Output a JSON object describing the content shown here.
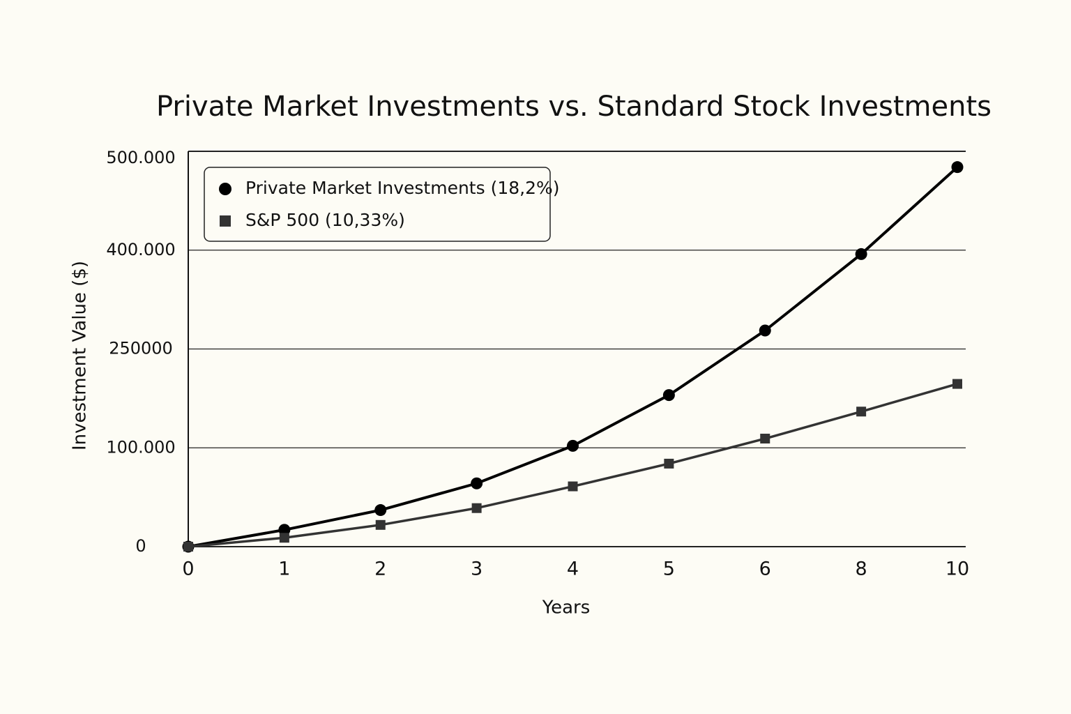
{
  "chart_data": {
    "type": "line",
    "title": "Private Market Investments vs. Standard Stock Investments",
    "x_label": "Years",
    "y_label": "Investment Value ($)",
    "categories": [
      "0",
      "1",
      "2",
      "3",
      "4",
      "5",
      "6",
      "8",
      "10"
    ],
    "series": [
      {
        "name": "Private Market Investments (18,2%)",
        "color": "#000000",
        "marker": "circle",
        "values": [
          0,
          17000,
          37000,
          64000,
          103000,
          180000,
          278000,
          394000,
          484000
        ]
      },
      {
        "name": "S&P 500 (10,33%)",
        "color": "#333333",
        "marker": "square",
        "values": [
          0,
          9000,
          22000,
          39000,
          61000,
          84000,
          114000,
          155000,
          197000
        ]
      }
    ],
    "ylim": [
      0,
      500000
    ],
    "yticks": [
      0,
      {
        "value": 100000,
        "label": "100.000"
      },
      250000,
      {
        "value": 400000,
        "label": "400.000"
      },
      {
        "value": 500000,
        "label": "500.000"
      }
    ],
    "grid": true,
    "legend": "upper left"
  }
}
